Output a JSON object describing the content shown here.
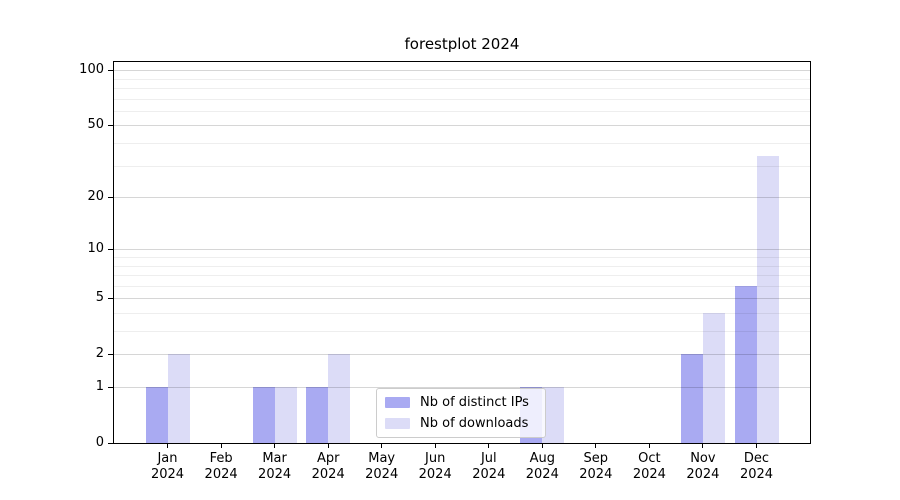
{
  "chart_data": {
    "type": "bar",
    "title": "forestplot 2024",
    "xlabel": "",
    "ylabel": "",
    "categories": [
      "Jan 2024",
      "Feb 2024",
      "Mar 2024",
      "Apr 2024",
      "May 2024",
      "Jun 2024",
      "Jul 2024",
      "Aug 2024",
      "Sep 2024",
      "Oct 2024",
      "Nov 2024",
      "Dec 2024"
    ],
    "series": [
      {
        "name": "Nb of distinct IPs",
        "color": "#a9aaf2",
        "values": [
          1,
          0,
          1,
          1,
          0,
          0,
          0,
          1,
          0,
          0,
          2,
          6
        ]
      },
      {
        "name": "Nb of downloads",
        "color": "#dcdcf7",
        "values": [
          2,
          0,
          1,
          2,
          0,
          0,
          0,
          1,
          0,
          0,
          4,
          34
        ]
      }
    ],
    "yscale": "log1p",
    "ylim": [
      0,
      112
    ],
    "yticks": [
      0,
      1,
      2,
      5,
      10,
      20,
      50,
      100
    ],
    "yticks_minor": [
      3,
      4,
      6,
      7,
      8,
      9,
      30,
      40,
      60,
      70,
      80,
      90
    ],
    "grid": true,
    "legend": {
      "position": "lower center",
      "labels": [
        "Nb of distinct IPs",
        "Nb of downloads"
      ]
    }
  }
}
